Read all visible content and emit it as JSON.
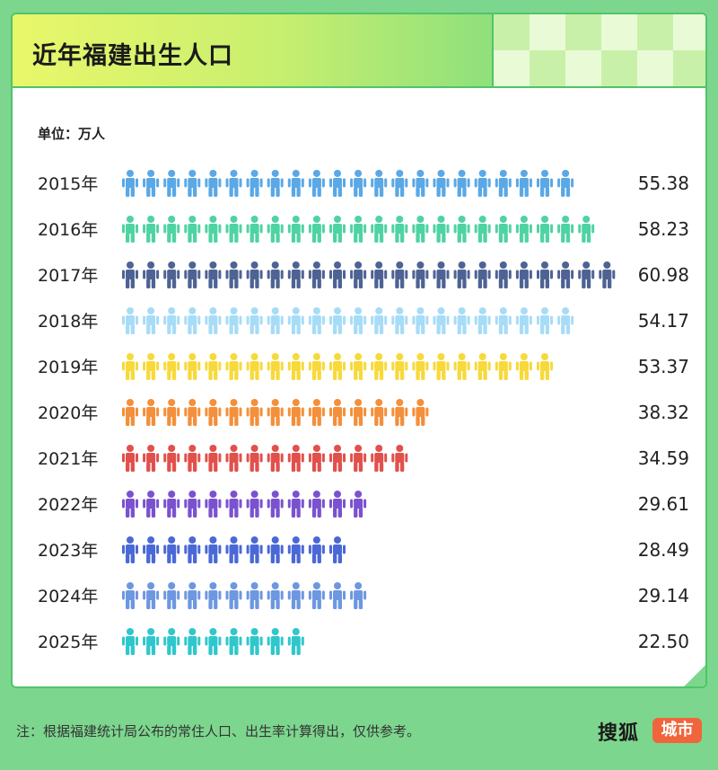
{
  "header": {
    "title": "近年福建出生人口"
  },
  "unit_label": "单位：万人",
  "footer": {
    "note": "注：根据福建统计局公布的常住人口、出生率计算得出，仅供参考。",
    "logo_text": "搜狐",
    "logo_badge": "城市"
  },
  "chart_data": {
    "type": "bar",
    "title": "近年福建出生人口",
    "ylabel": "单位：万人",
    "per_icon": 2.5,
    "categories": [
      "2015年",
      "2016年",
      "2017年",
      "2018年",
      "2019年",
      "2020年",
      "2021年",
      "2022年",
      "2023年",
      "2024年",
      "2025年"
    ],
    "values": [
      55.38,
      58.23,
      60.98,
      54.17,
      53.37,
      38.32,
      34.59,
      29.61,
      28.49,
      29.14,
      22.5
    ],
    "value_labels": [
      "55.38",
      "58.23",
      "60.98",
      "54.17",
      "53.37",
      "38.32",
      "34.59",
      "29.61",
      "28.49",
      "29.14",
      "22.50"
    ],
    "colors": [
      "#5aa8e6",
      "#4fd3a3",
      "#4e6394",
      "#a7dcf7",
      "#f7d93a",
      "#f48f3a",
      "#e2504b",
      "#7a52cf",
      "#4a68d6",
      "#6d97e0",
      "#2fc7cc"
    ]
  }
}
